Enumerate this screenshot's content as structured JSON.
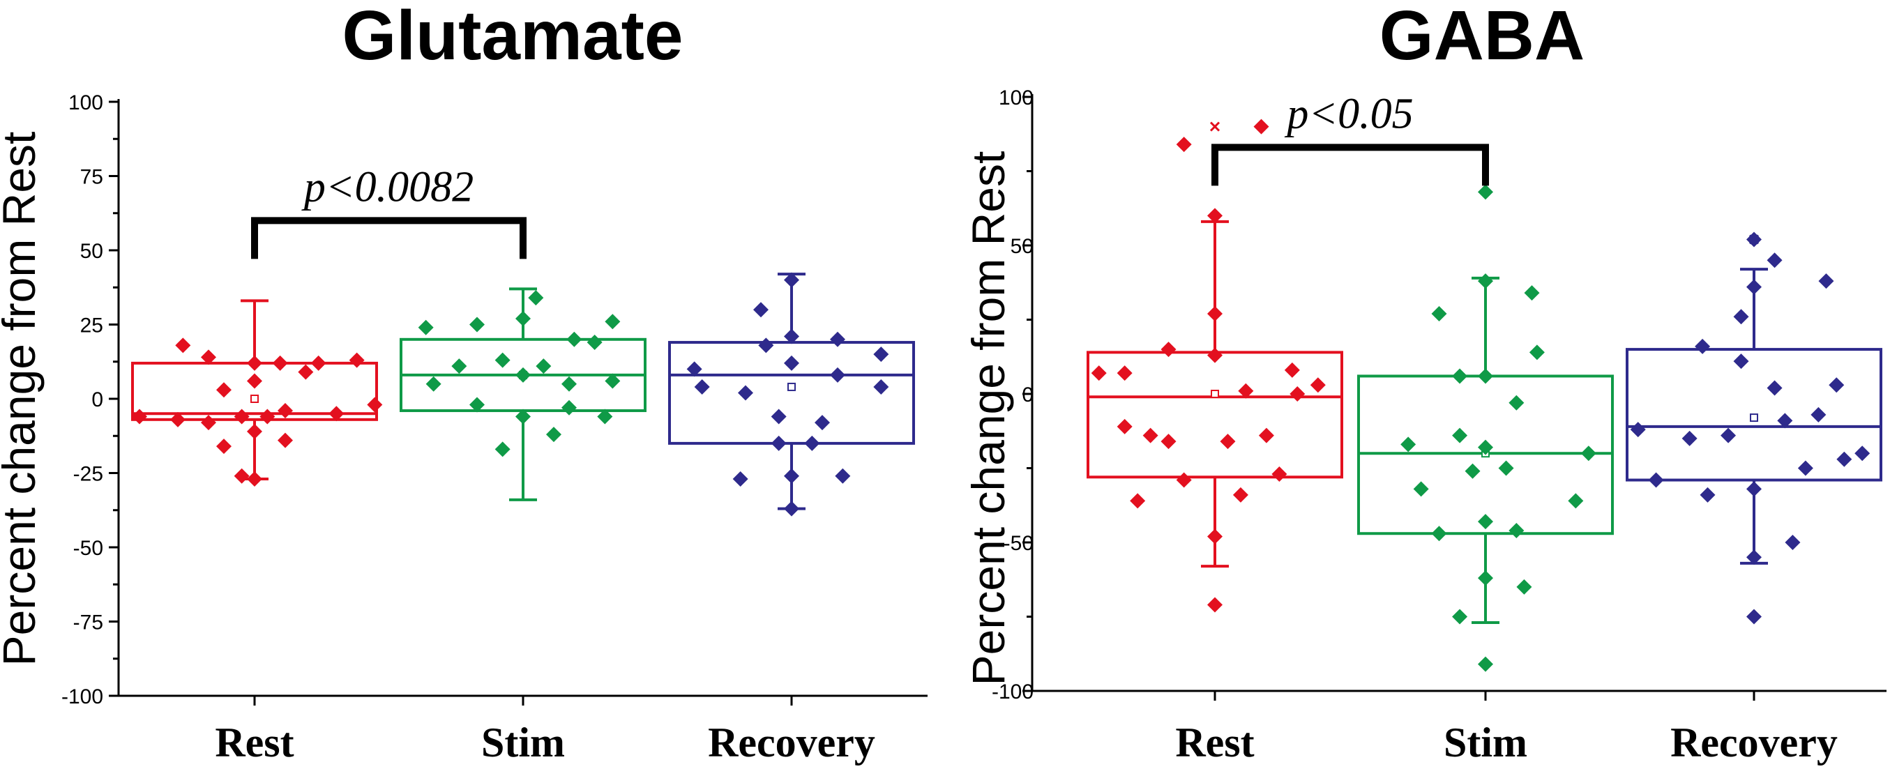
{
  "chart_data": [
    {
      "type": "box",
      "title": "Glutamate",
      "xlabel": "",
      "ylabel": "Percent change from Rest",
      "ylim": [
        -100,
        100
      ],
      "yticks": [
        100,
        75,
        50,
        25,
        0,
        -25,
        -50,
        -75,
        -100
      ],
      "categories": [
        "Rest",
        "Stim",
        "Recovery"
      ],
      "colors": [
        "#E3101F",
        "#0F9A47",
        "#2E2A8C"
      ],
      "boxes": [
        {
          "q1": -7,
          "median": -5,
          "q3": 12,
          "mean": 0,
          "whisker_low": -27,
          "whisker_high": 33
        },
        {
          "q1": -4,
          "median": 8,
          "q3": 20,
          "mean": 8,
          "whisker_low": -34,
          "whisker_high": 37
        },
        {
          "q1": -15,
          "median": 8,
          "q3": 19,
          "mean": 4,
          "whisker_low": -37,
          "whisker_high": 42
        }
      ],
      "points": [
        [
          [
            -0.45,
            -6
          ],
          [
            -0.3,
            -7
          ],
          [
            -0.28,
            18
          ],
          [
            -0.18,
            14
          ],
          [
            -0.18,
            -8
          ],
          [
            -0.12,
            3
          ],
          [
            -0.12,
            -16
          ],
          [
            -0.05,
            -6
          ],
          [
            0,
            12
          ],
          [
            0,
            -11
          ],
          [
            0,
            6
          ],
          [
            0,
            -27
          ],
          [
            0.05,
            -6
          ],
          [
            0.1,
            12
          ],
          [
            0.12,
            -4
          ],
          [
            0.12,
            -14
          ],
          [
            0.2,
            9
          ],
          [
            0.25,
            12
          ],
          [
            0.32,
            -5
          ],
          [
            0.4,
            13
          ],
          [
            0.47,
            -2
          ],
          [
            -0.05,
            -26
          ]
        ],
        [
          [
            -0.38,
            24
          ],
          [
            -0.35,
            5
          ],
          [
            -0.25,
            11
          ],
          [
            -0.18,
            -2
          ],
          [
            -0.18,
            25
          ],
          [
            -0.08,
            13
          ],
          [
            -0.08,
            -17
          ],
          [
            0,
            27
          ],
          [
            0,
            -6
          ],
          [
            0,
            8
          ],
          [
            0.08,
            11
          ],
          [
            0.12,
            -12
          ],
          [
            0.18,
            -3
          ],
          [
            0.18,
            5
          ],
          [
            0.2,
            20
          ],
          [
            0.28,
            19
          ],
          [
            0.32,
            -6
          ],
          [
            0.35,
            26
          ],
          [
            0.35,
            6
          ],
          [
            0.05,
            34
          ]
        ],
        [
          [
            -0.38,
            10
          ],
          [
            -0.35,
            4
          ],
          [
            -0.2,
            -27
          ],
          [
            -0.18,
            2
          ],
          [
            -0.12,
            30
          ],
          [
            -0.1,
            18
          ],
          [
            -0.05,
            -6
          ],
          [
            -0.05,
            -15
          ],
          [
            0,
            -26
          ],
          [
            0,
            40
          ],
          [
            0,
            12
          ],
          [
            0,
            21
          ],
          [
            0.08,
            -15
          ],
          [
            0.12,
            -8
          ],
          [
            0.18,
            8
          ],
          [
            0.18,
            20
          ],
          [
            0.2,
            -26
          ],
          [
            0.35,
            15
          ],
          [
            0.35,
            4
          ],
          [
            0,
            -37
          ]
        ]
      ],
      "annotation": {
        "text": "p<0.0082",
        "from": "Rest",
        "to": "Stim",
        "y": 60
      }
    },
    {
      "type": "box",
      "title": "GABA",
      "xlabel": "",
      "ylabel": "Percent change from Rest",
      "ylim": [
        -100,
        100
      ],
      "yticks": [
        100,
        50,
        0,
        -50,
        -100
      ],
      "categories": [
        "Rest",
        "Stim",
        "Recovery"
      ],
      "colors": [
        "#E3101F",
        "#0F9A47",
        "#2E2A8C"
      ],
      "boxes": [
        {
          "q1": -28,
          "median": -1,
          "q3": 14,
          "mean": 0,
          "whisker_low": -58,
          "whisker_high": 58,
          "outlier_marker": 90
        },
        {
          "q1": -47,
          "median": -20,
          "q3": 6,
          "mean": -20,
          "whisker_low": -77,
          "whisker_high": 39
        },
        {
          "q1": -29,
          "median": -11,
          "q3": 15,
          "mean": -8,
          "whisker_low": -57,
          "whisker_high": 42,
          "outlier_marker": 52
        }
      ],
      "points": [
        [
          [
            -0.45,
            7
          ],
          [
            -0.35,
            -11
          ],
          [
            -0.35,
            7
          ],
          [
            -0.3,
            -36
          ],
          [
            -0.25,
            -14
          ],
          [
            -0.18,
            15
          ],
          [
            -0.18,
            -16
          ],
          [
            -0.12,
            -29
          ],
          [
            -0.12,
            84
          ],
          [
            0,
            60
          ],
          [
            0,
            27
          ],
          [
            0,
            13
          ],
          [
            0,
            -48
          ],
          [
            0,
            -71
          ],
          [
            0.05,
            -16
          ],
          [
            0.1,
            -34
          ],
          [
            0.12,
            1
          ],
          [
            0.18,
            90
          ],
          [
            0.2,
            -14
          ],
          [
            0.25,
            -27
          ],
          [
            0.3,
            8
          ],
          [
            0.32,
            0
          ],
          [
            0.4,
            3
          ]
        ],
        [
          [
            -0.3,
            -17
          ],
          [
            -0.25,
            -32
          ],
          [
            -0.18,
            27
          ],
          [
            -0.18,
            -47
          ],
          [
            -0.1,
            6
          ],
          [
            -0.1,
            -14
          ],
          [
            -0.1,
            -75
          ],
          [
            -0.05,
            -26
          ],
          [
            0,
            -18
          ],
          [
            0,
            -62
          ],
          [
            0,
            -43
          ],
          [
            0,
            6
          ],
          [
            0,
            38
          ],
          [
            0,
            68
          ],
          [
            0.08,
            -25
          ],
          [
            0.12,
            -3
          ],
          [
            0.12,
            -46
          ],
          [
            0.15,
            -65
          ],
          [
            0.18,
            34
          ],
          [
            0.2,
            14
          ],
          [
            0.35,
            -36
          ],
          [
            0.4,
            -20
          ],
          [
            0,
            -91
          ]
        ],
        [
          [
            -0.45,
            -12
          ],
          [
            -0.38,
            -29
          ],
          [
            -0.25,
            -15
          ],
          [
            -0.2,
            16
          ],
          [
            -0.18,
            -34
          ],
          [
            -0.1,
            -14
          ],
          [
            -0.05,
            11
          ],
          [
            -0.05,
            26
          ],
          [
            0,
            -32
          ],
          [
            0,
            -55
          ],
          [
            0,
            36
          ],
          [
            0,
            52
          ],
          [
            0.08,
            45
          ],
          [
            0.08,
            2
          ],
          [
            0.12,
            -9
          ],
          [
            0.15,
            -50
          ],
          [
            0.2,
            -25
          ],
          [
            0.25,
            -7
          ],
          [
            0.28,
            38
          ],
          [
            0.32,
            3
          ],
          [
            0.35,
            -22
          ],
          [
            0.42,
            -20
          ],
          [
            0,
            -75
          ]
        ]
      ],
      "annotation": {
        "text": "p<0.05",
        "from": "Rest",
        "to": "Stim",
        "y": 83
      }
    }
  ]
}
